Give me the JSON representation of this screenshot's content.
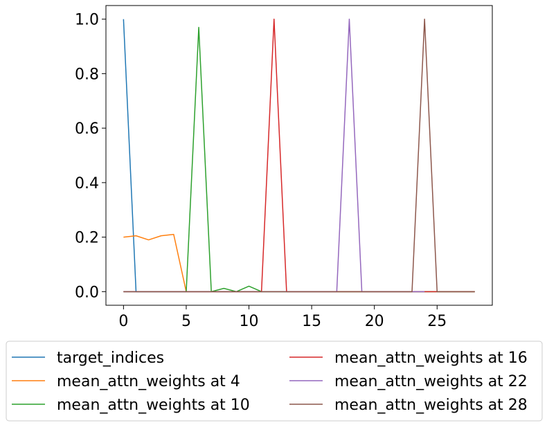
{
  "chart_data": {
    "type": "line",
    "title": "",
    "xlabel": "",
    "ylabel": "",
    "xlim": [
      -1.4,
      29.4
    ],
    "ylim": [
      -0.05,
      1.05
    ],
    "xticks": [
      0,
      5,
      10,
      15,
      20,
      25
    ],
    "yticks": [
      0.0,
      0.2,
      0.4,
      0.6,
      0.8,
      1.0
    ],
    "xtick_labels": [
      "0",
      "5",
      "10",
      "15",
      "20",
      "25"
    ],
    "ytick_labels": [
      "0.0",
      "0.2",
      "0.4",
      "0.6",
      "0.8",
      "1.0"
    ],
    "grid": false,
    "legend_placement": "below, 2 columns",
    "series": [
      {
        "name": "target_indices",
        "color": "#1f77b4",
        "x": [
          0,
          1,
          28
        ],
        "y": [
          1.0,
          0.0,
          0.0
        ]
      },
      {
        "name": "mean_attn_weights at 4",
        "color": "#ff7f0e",
        "x": [
          0,
          1,
          2,
          3,
          4,
          5,
          28
        ],
        "y": [
          0.2,
          0.205,
          0.19,
          0.205,
          0.21,
          0.0,
          0.0
        ]
      },
      {
        "name": "mean_attn_weights at 10",
        "color": "#2ca02c",
        "x": [
          0,
          5,
          6,
          7,
          8,
          9,
          10,
          11,
          28
        ],
        "y": [
          0.0,
          0.0,
          0.97,
          0.0,
          0.012,
          0.0,
          0.02,
          0.0,
          0.0
        ]
      },
      {
        "name": "mean_attn_weights at 16",
        "color": "#d62728",
        "x": [
          0,
          11,
          12,
          13,
          28
        ],
        "y": [
          0.0,
          0.0,
          1.0,
          0.0,
          0.0
        ]
      },
      {
        "name": "mean_attn_weights at 22",
        "color": "#9467bd",
        "x": [
          0,
          17,
          18,
          19,
          24
        ],
        "y": [
          0.0,
          0.0,
          1.0,
          0.0,
          0.0
        ]
      },
      {
        "name": "mean_attn_weights at 28",
        "color": "#8c564b",
        "x": [
          0,
          23,
          24,
          25,
          28
        ],
        "y": [
          0.0,
          0.0,
          1.0,
          0.0,
          0.0
        ]
      }
    ]
  }
}
